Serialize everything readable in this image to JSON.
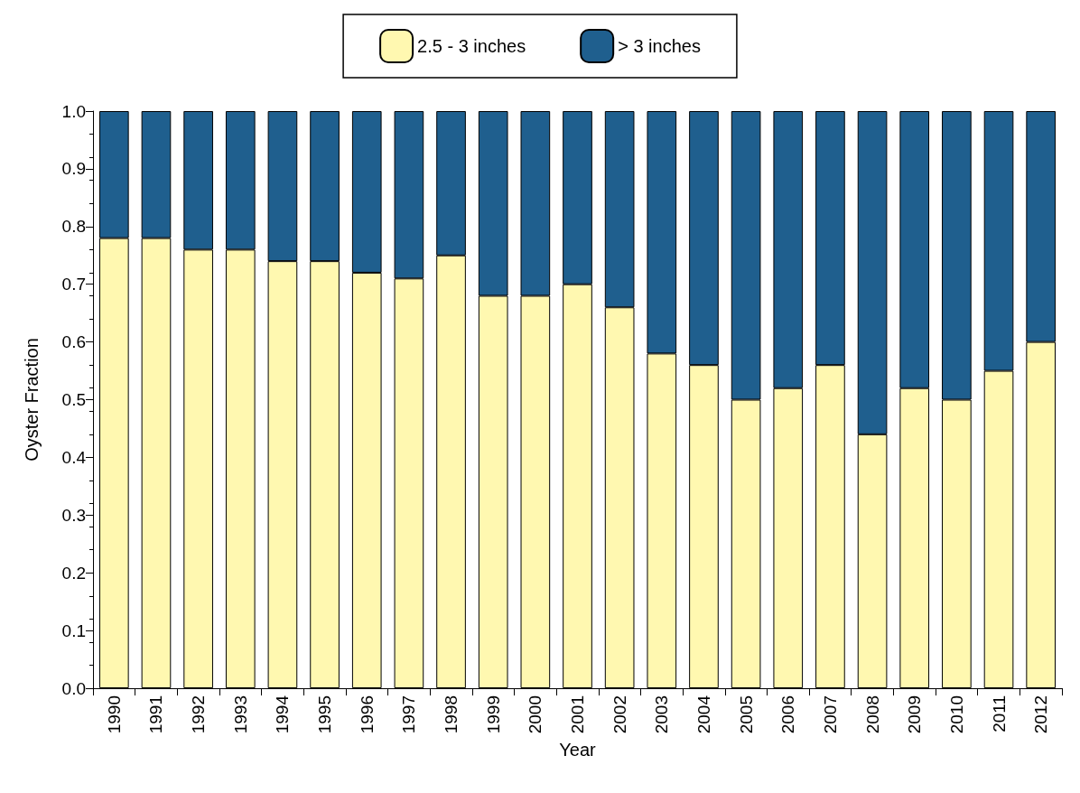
{
  "chart_data": {
    "type": "bar",
    "stacked": true,
    "xlabel": "Year",
    "ylabel": "Oyster Fraction",
    "categories": [
      "1990",
      "1991",
      "1992",
      "1993",
      "1994",
      "1995",
      "1996",
      "1997",
      "1998",
      "1999",
      "2000",
      "2001",
      "2002",
      "2003",
      "2004",
      "2005",
      "2006",
      "2007",
      "2008",
      "2009",
      "2010",
      "2011",
      "2012"
    ],
    "series": [
      {
        "name": "2.5 - 3 inches",
        "color": "#fff8b0",
        "values": [
          0.78,
          0.78,
          0.76,
          0.76,
          0.74,
          0.74,
          0.72,
          0.71,
          0.75,
          0.68,
          0.68,
          0.7,
          0.66,
          0.58,
          0.56,
          0.5,
          0.52,
          0.56,
          0.44,
          0.52,
          0.5,
          0.55,
          0.6
        ]
      },
      {
        "name": "> 3 inches",
        "color": "#1f5f8e",
        "values": [
          0.22,
          0.22,
          0.24,
          0.24,
          0.26,
          0.26,
          0.28,
          0.29,
          0.25,
          0.32,
          0.32,
          0.3,
          0.34,
          0.42,
          0.44,
          0.5,
          0.48,
          0.44,
          0.56,
          0.48,
          0.5,
          0.45,
          0.4
        ]
      }
    ],
    "ylim": [
      0,
      1
    ],
    "yticks": [
      {
        "value": 0,
        "label": "0.0"
      },
      {
        "value": 0.1,
        "label": "0.1"
      },
      {
        "value": 0.2,
        "label": "0.2"
      },
      {
        "value": 0.3,
        "label": "0.3"
      },
      {
        "value": 0.4,
        "label": "0.4"
      },
      {
        "value": 0.5,
        "label": "0.5"
      },
      {
        "value": 0.6,
        "label": "0.6"
      },
      {
        "value": 0.7,
        "label": "0.7"
      },
      {
        "value": 0.8,
        "label": "0.8"
      },
      {
        "value": 0.9,
        "label": "0.9"
      },
      {
        "value": 1,
        "label": "1.0"
      }
    ],
    "grid": false,
    "legend": "top"
  }
}
